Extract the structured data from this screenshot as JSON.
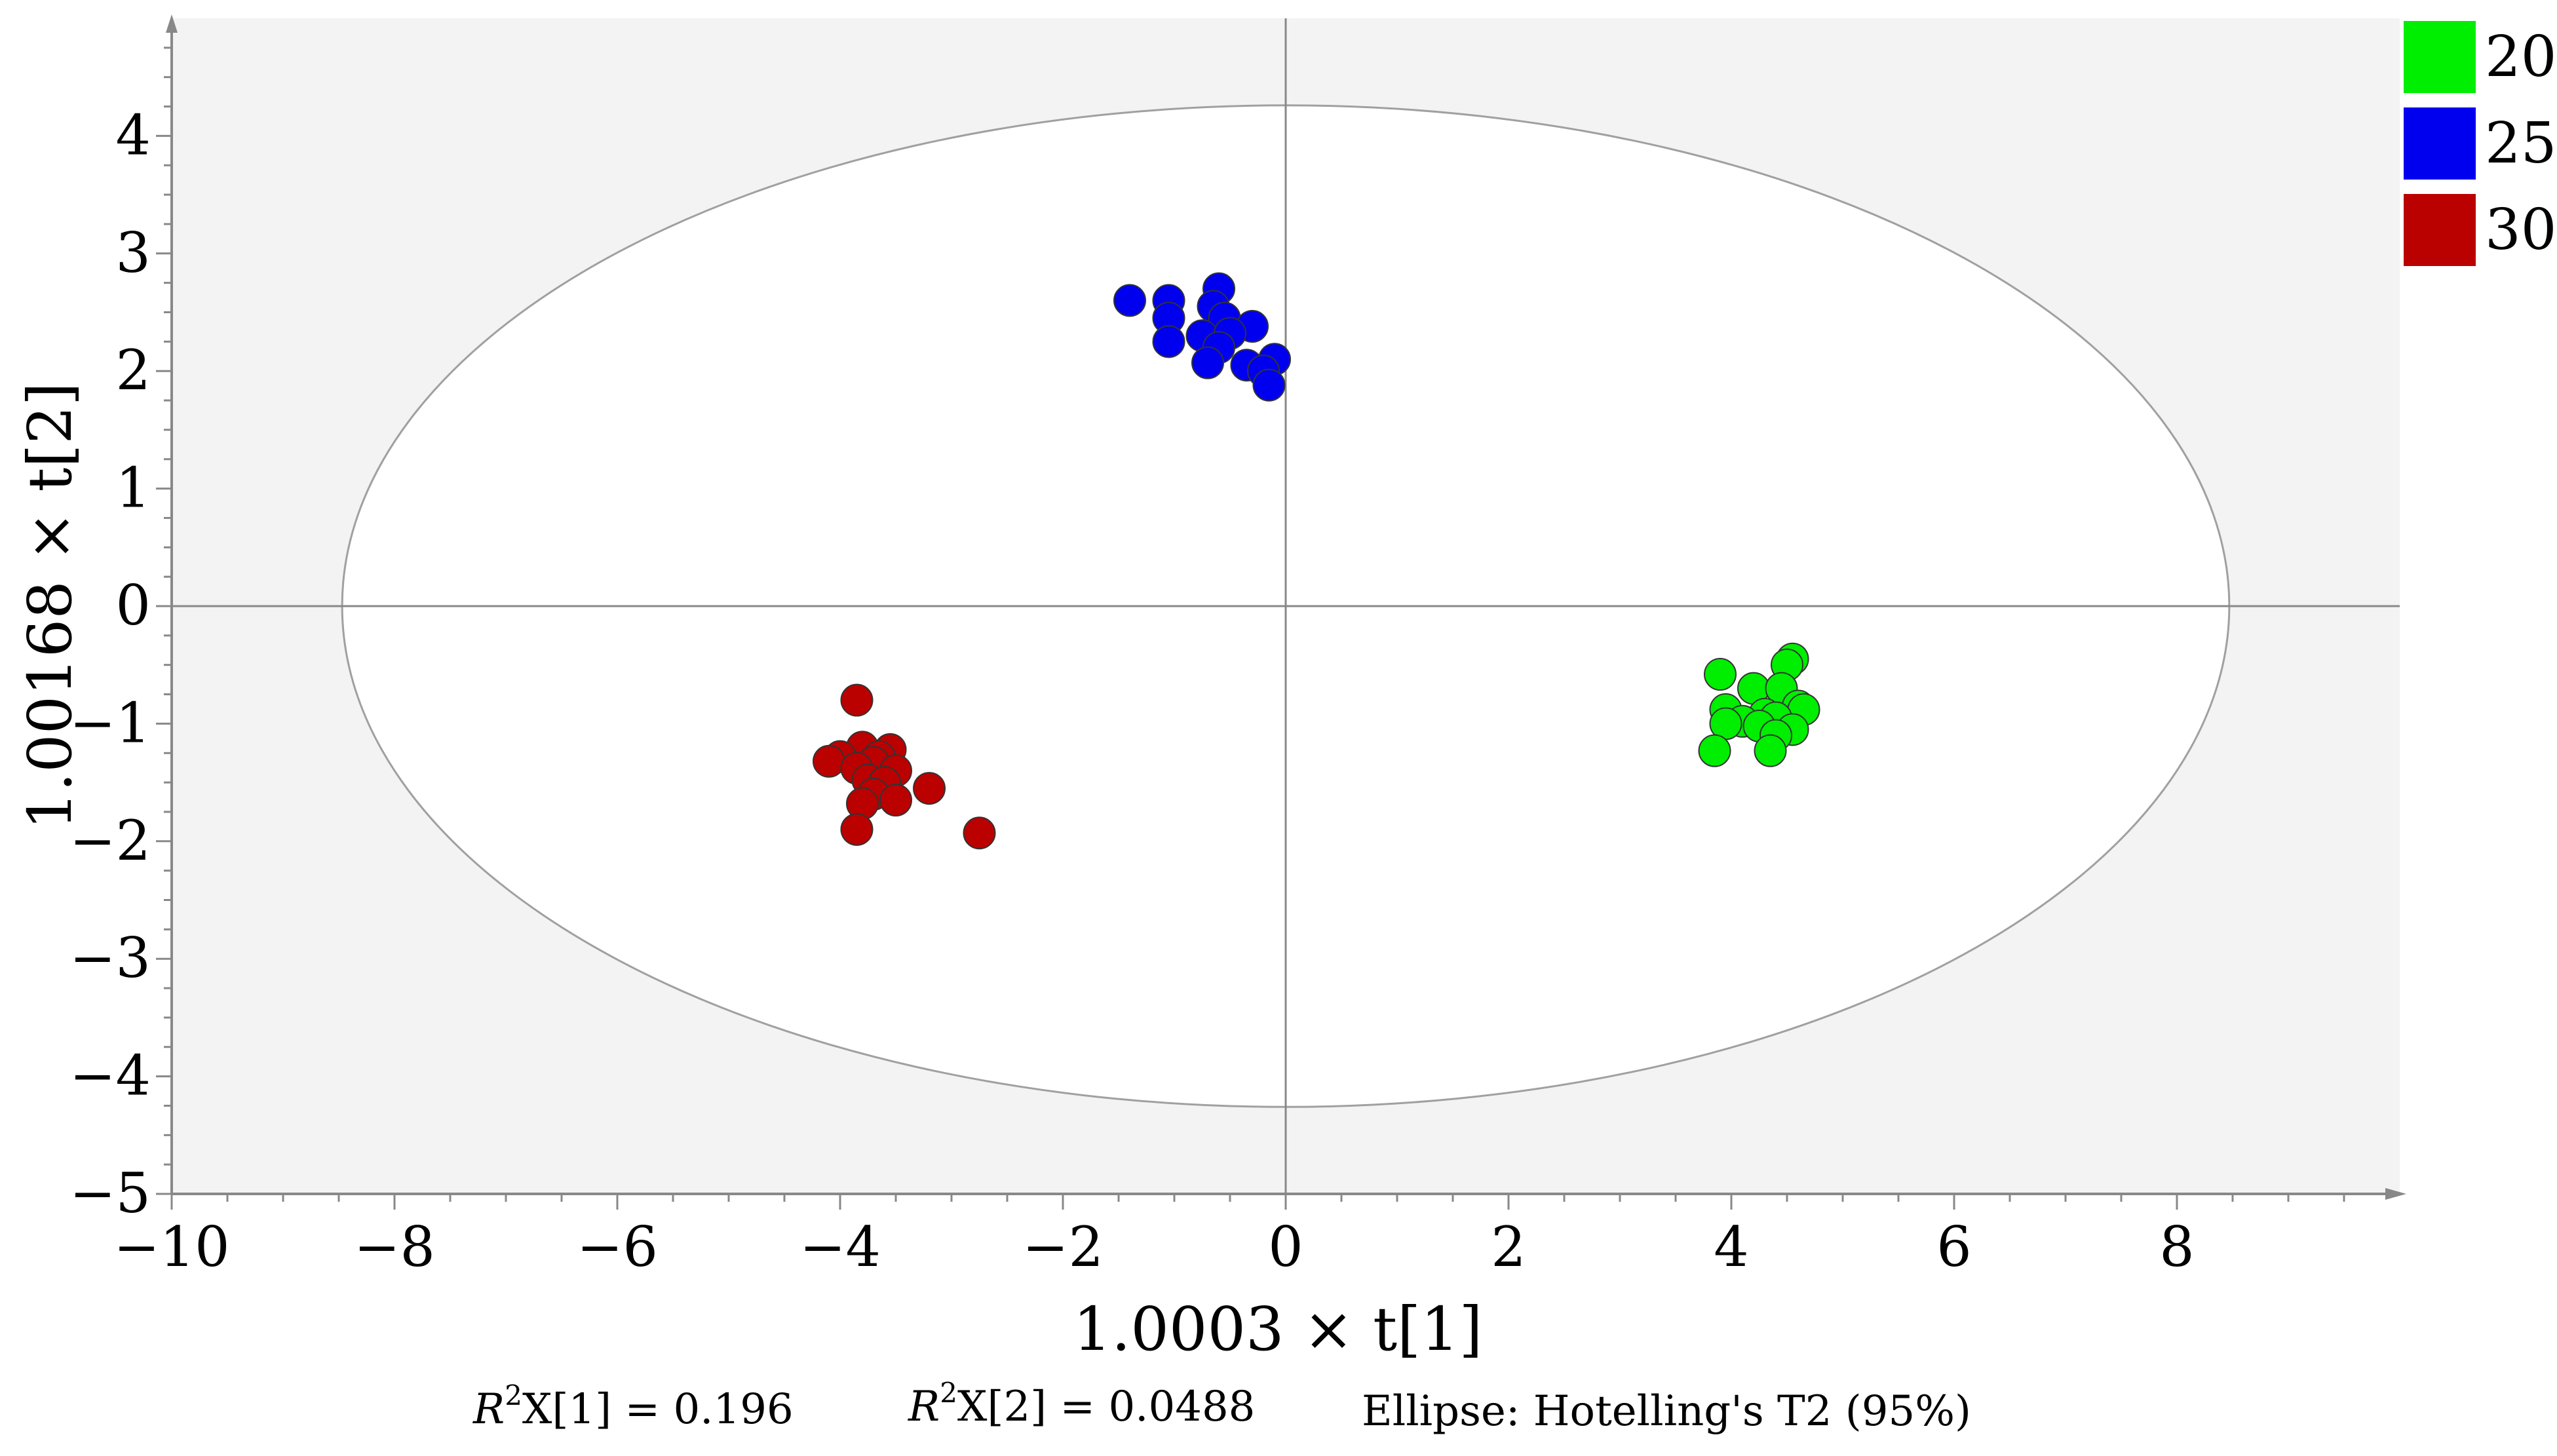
{
  "chart_data": {
    "type": "scatter",
    "xlabel": "1.0003 × t[1]",
    "ylabel": "1.00168 × t[2]",
    "xlim": [
      -10,
      10
    ],
    "ylim": [
      -5,
      5
    ],
    "x_ticks": [
      -10,
      -8,
      -6,
      -4,
      -2,
      0,
      2,
      4,
      6,
      8
    ],
    "y_ticks": [
      -5,
      -4,
      -3,
      -2,
      -1,
      0,
      1,
      2,
      3,
      4
    ],
    "x_tick_labels": [
      "−10",
      "−8",
      "−6",
      "−4",
      "−2",
      "0",
      "2",
      "4",
      "6",
      "8"
    ],
    "y_tick_labels": [
      "−5",
      "−4",
      "−3",
      "−2",
      "−1",
      "0",
      "1",
      "2",
      "3",
      "4"
    ],
    "ellipse": {
      "label": "Ellipse: Hotelling's T2 (95%)",
      "cx": 0,
      "cy": 0,
      "rx": 8.47,
      "ry": 4.26
    },
    "legend_position": "top-right",
    "series": [
      {
        "name": "20",
        "color": "#00ee00",
        "points": [
          [
            3.9,
            -0.58
          ],
          [
            4.55,
            -0.45
          ],
          [
            4.5,
            -0.5
          ],
          [
            4.2,
            -0.7
          ],
          [
            4.45,
            -0.7
          ],
          [
            3.95,
            -0.88
          ],
          [
            4.6,
            -0.85
          ],
          [
            4.65,
            -0.88
          ],
          [
            4.3,
            -0.92
          ],
          [
            4.4,
            -0.95
          ],
          [
            4.1,
            -0.98
          ],
          [
            3.95,
            -1.0
          ],
          [
            4.25,
            -1.02
          ],
          [
            4.55,
            -1.05
          ],
          [
            4.4,
            -1.1
          ],
          [
            3.85,
            -1.23
          ],
          [
            4.35,
            -1.23
          ]
        ]
      },
      {
        "name": "25",
        "color": "#0000ee",
        "points": [
          [
            -1.4,
            2.6
          ],
          [
            -1.05,
            2.6
          ],
          [
            -0.6,
            2.7
          ],
          [
            -0.65,
            2.55
          ],
          [
            -1.05,
            2.45
          ],
          [
            -0.55,
            2.45
          ],
          [
            -0.3,
            2.38
          ],
          [
            -0.75,
            2.3
          ],
          [
            -0.5,
            2.32
          ],
          [
            -1.05,
            2.25
          ],
          [
            -0.6,
            2.2
          ],
          [
            -0.1,
            2.1
          ],
          [
            -0.7,
            2.07
          ],
          [
            -0.35,
            2.05
          ],
          [
            -0.2,
            2.0
          ],
          [
            -0.15,
            1.88
          ]
        ]
      },
      {
        "name": "30",
        "color": "#bb0000",
        "points": [
          [
            -3.85,
            -0.8
          ],
          [
            -3.8,
            -1.2
          ],
          [
            -3.55,
            -1.22
          ],
          [
            -4.0,
            -1.28
          ],
          [
            -3.65,
            -1.28
          ],
          [
            -4.1,
            -1.32
          ],
          [
            -3.7,
            -1.33
          ],
          [
            -3.85,
            -1.38
          ],
          [
            -3.5,
            -1.4
          ],
          [
            -3.75,
            -1.48
          ],
          [
            -3.6,
            -1.5
          ],
          [
            -3.2,
            -1.55
          ],
          [
            -3.7,
            -1.6
          ],
          [
            -3.5,
            -1.65
          ],
          [
            -3.8,
            -1.68
          ],
          [
            -3.85,
            -1.9
          ],
          [
            -2.75,
            -1.93
          ]
        ]
      }
    ],
    "annotations": [
      "R²X[1] = 0.196",
      "R²X[2] = 0.0488",
      "Ellipse: Hotelling's T2 (95%)"
    ]
  },
  "footnotes": {
    "r2x1_prefix": "R",
    "r2x1_sup": "2",
    "r2x1_suffix": "X[1] = 0.196",
    "r2x2_prefix": "R",
    "r2x2_sup": "2",
    "r2x2_suffix": "X[2] = 0.0488",
    "ellipse_label": "Ellipse: Hotelling's T2 (95%)"
  },
  "colors": {
    "plot_background": "#f3f3f3",
    "ellipse_fill": "#ffffff",
    "ellipse_stroke": "#a0a0a0",
    "axis": "#888888"
  }
}
